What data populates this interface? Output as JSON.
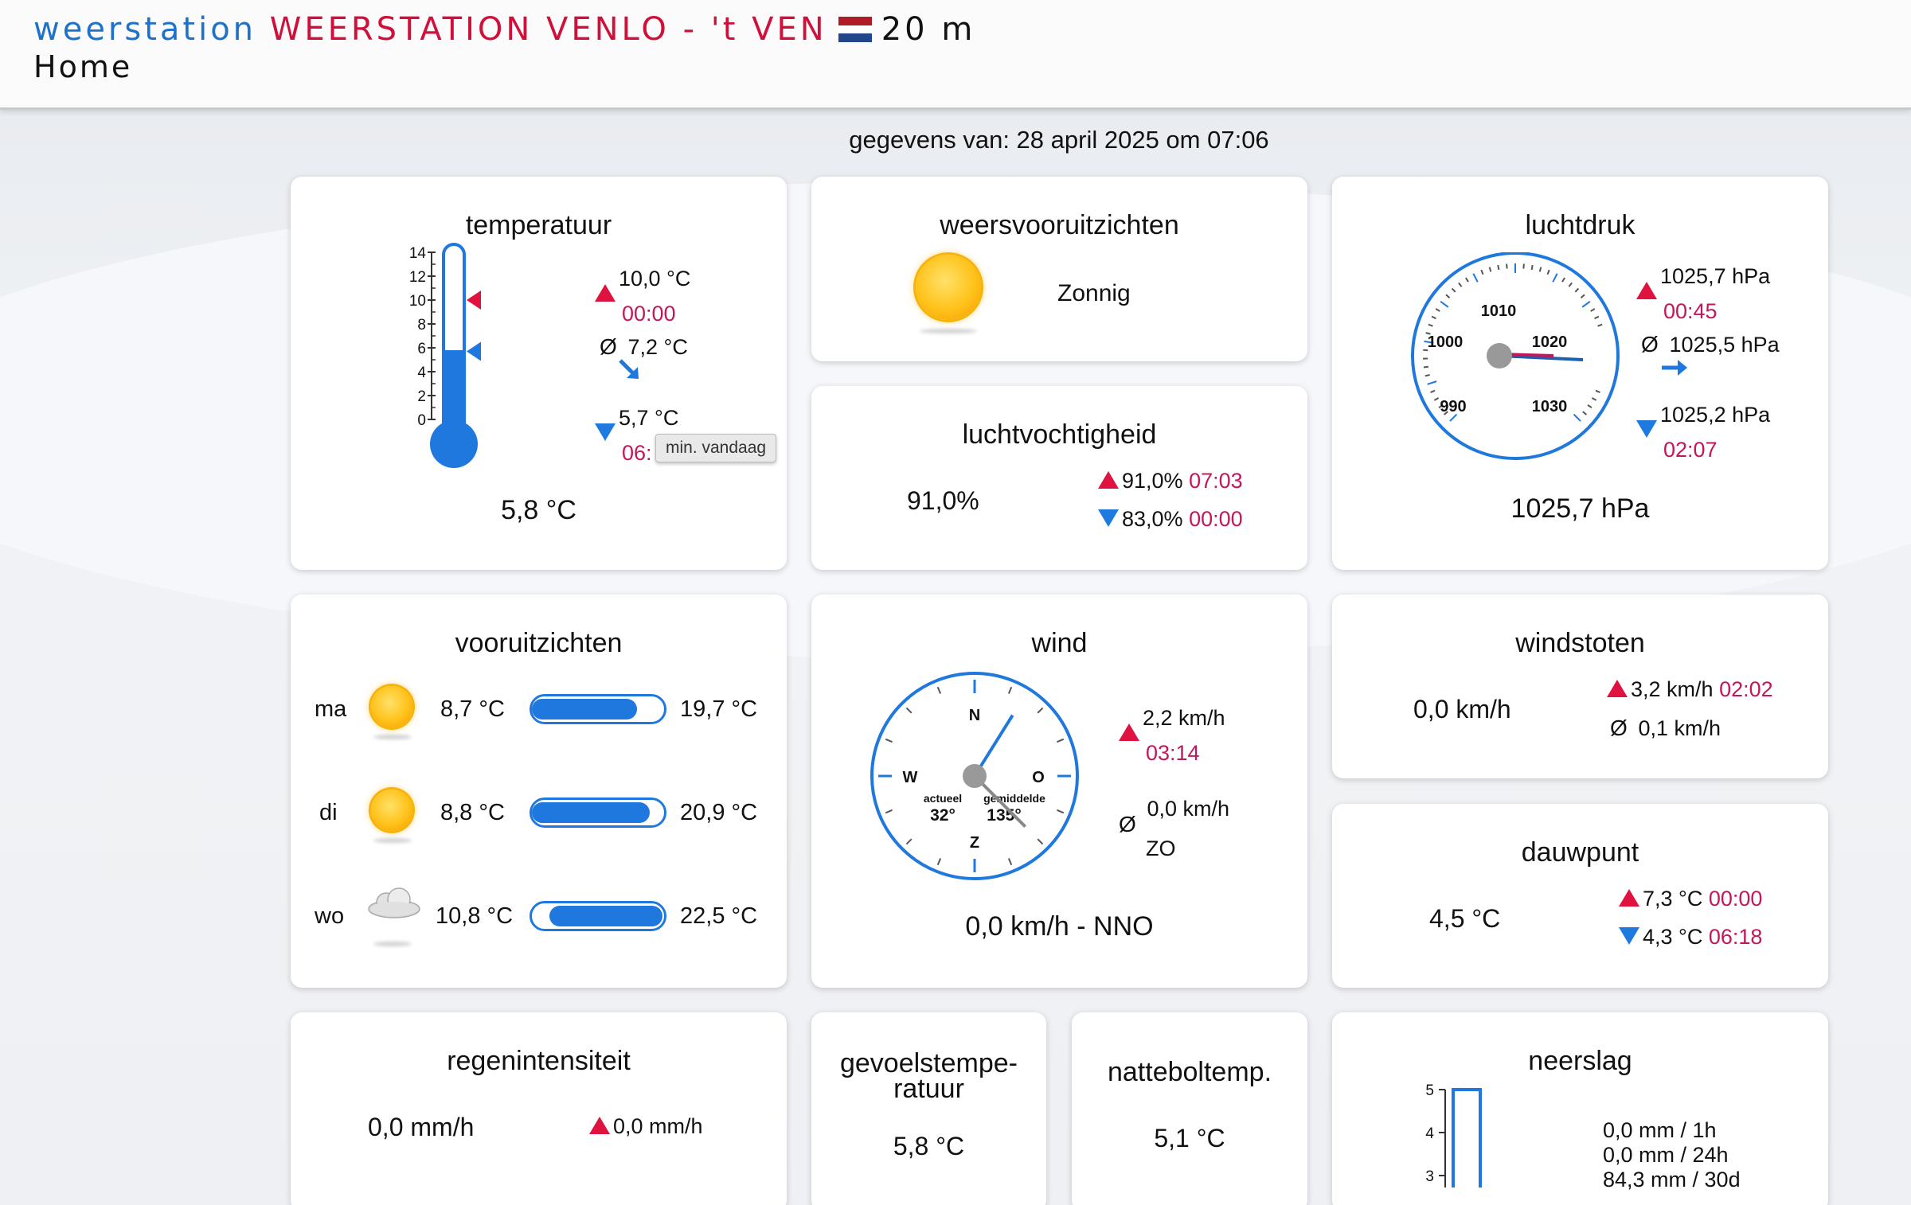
{
  "header": {
    "site_prefix": "weerstation",
    "station_name": "WEERSTATION VENLO - 't VEN",
    "altitude": "20 m",
    "breadcrumb": "Home"
  },
  "timestamp": "gegevens van: 28 april 2025 om 07:06",
  "colors": {
    "accent_blue": "#1e72c8",
    "accent_red": "#d0103a",
    "time_red": "#c2185b"
  },
  "temperature": {
    "title": "temperatuur",
    "scale_labels": [
      "14",
      "12",
      "10",
      "8",
      "6",
      "4",
      "2",
      "0"
    ],
    "current": "5,8 °C",
    "max_value": "10,0 °C",
    "max_time": "00:00",
    "avg_value": "7,2 °C",
    "min_value": "5,7 °C",
    "min_time": "06:",
    "tooltip": "min. vandaag",
    "fill_level_celsius": 5.8,
    "marker_high_celsius": 10.0,
    "marker_low_celsius": 5.7,
    "scale_max_celsius": 14
  },
  "outlook_now": {
    "title": "weersvooruitzichten",
    "icon": "sun-icon",
    "text": "Zonnig"
  },
  "humidity": {
    "title": "luchtvochtigheid",
    "current": "91,0%",
    "max_value": "91,0%",
    "max_time": "07:03",
    "min_value": "83,0%",
    "min_time": "00:00"
  },
  "pressure": {
    "title": "luchtdruk",
    "dial_labels": [
      "990",
      "1000",
      "1010",
      "1020",
      "1030"
    ],
    "current": "1025,7 hPa",
    "max_value": "1025,7 hPa",
    "max_time": "00:45",
    "avg_value": "1025,5 hPa",
    "min_value": "1025,2 hPa",
    "min_time": "02:07",
    "needle_hpa": 1025.7
  },
  "forecast": {
    "title": "vooruitzichten",
    "days": [
      {
        "day": "ma",
        "icon": "sun-icon",
        "min": "8,7 °C",
        "max": "19,7 °C"
      },
      {
        "day": "di",
        "icon": "sun-icon",
        "min": "8,8 °C",
        "max": "20,9 °C"
      },
      {
        "day": "wo",
        "icon": "cloud-icon",
        "min": "10,8 °C",
        "max": "22,5 °C"
      }
    ]
  },
  "wind": {
    "title": "wind",
    "compass_labels": {
      "n": "N",
      "o": "O",
      "z": "Z",
      "w": "W"
    },
    "actual_label": "actueel",
    "actual_deg": "32°",
    "avg_label": "gemiddelde",
    "avg_deg": "135°",
    "max_value": "2,2 km/h",
    "max_time": "03:14",
    "avg_value": "0,0 km/h",
    "avg_dir": "ZO",
    "current": "0,0 km/h - NNO"
  },
  "gusts": {
    "title": "windstoten",
    "current": "0,0 km/h",
    "max_value": "3,2 km/h",
    "max_time": "02:02",
    "avg_value": "0,1 km/h"
  },
  "dewpoint": {
    "title": "dauwpunt",
    "current": "4,5 °C",
    "max_value": "7,3 °C",
    "max_time": "00:00",
    "min_value": "4,3 °C",
    "min_time": "06:18"
  },
  "rain_rate": {
    "title": "regenintensiteit",
    "current": "0,0 mm/h",
    "max_value": "0,0 mm/h"
  },
  "feels_like": {
    "title_line1": "gevoelstempe-",
    "title_line2": "ratuur",
    "current": "5,8 °C"
  },
  "wetbulb": {
    "title": "natteboltemp.",
    "current": "5,1 °C"
  },
  "precip": {
    "title": "neerslag",
    "scale_labels": [
      "5",
      "4",
      "3"
    ],
    "hour": "0,0 mm  / 1h",
    "day": "0,0 mm  / 24h",
    "month": "84,3 mm  / 30d"
  }
}
